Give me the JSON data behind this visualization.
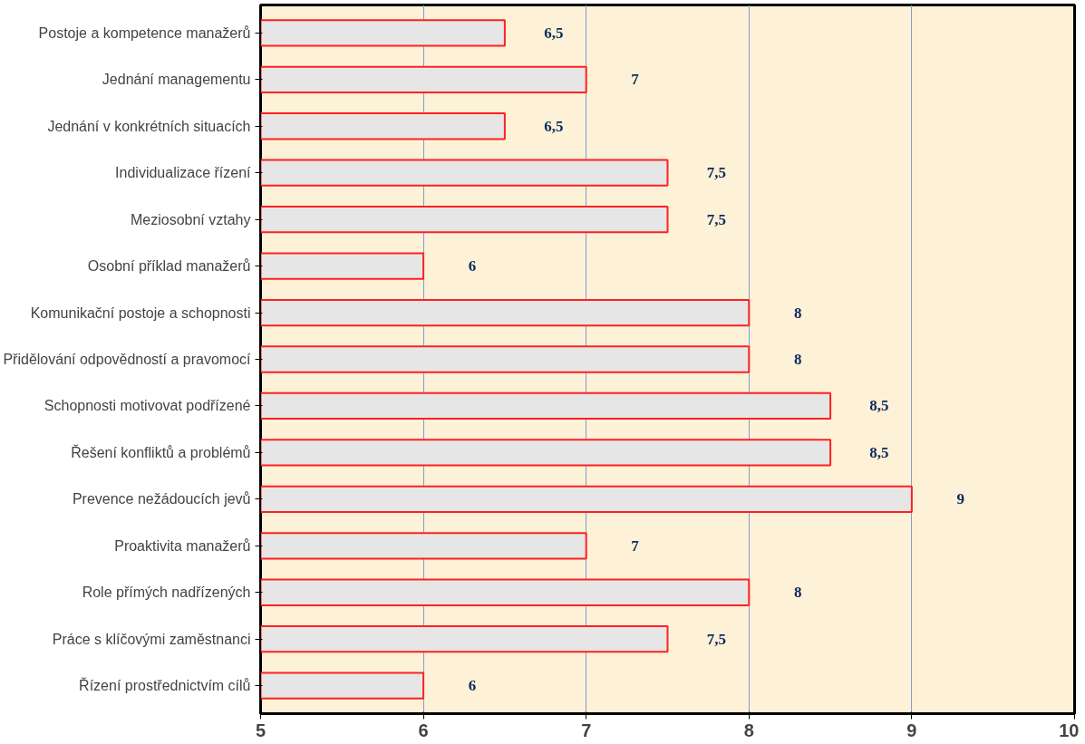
{
  "chart_data": {
    "type": "bar",
    "orientation": "horizontal",
    "categories": [
      "Postoje a kompetence manažerů",
      "Jednání managementu",
      "Jednání v konkrétních situacích",
      "Individualizace řízení",
      "Meziosobní vztahy",
      "Osobní příklad manažerů",
      "Komunikační postoje a schopnosti",
      "Přidělování odpovědností a pravomocí",
      "Schopnosti motivovat podřízené",
      "Řešení konfliktů a problémů",
      "Prevence nežádoucích jevů",
      "Proaktivita manažerů",
      "Role přímých nadřízených",
      "Práce s klíčovými zaměstnanci",
      "Řízení prostřednictvím cílů"
    ],
    "values": [
      6.5,
      7,
      6.5,
      7.5,
      7.5,
      6,
      8,
      8,
      8.5,
      8.5,
      9,
      7,
      8,
      7.5,
      6
    ],
    "value_labels": [
      "6,5",
      "7",
      "6,5",
      "7,5",
      "7,5",
      "6",
      "8",
      "8",
      "8,5",
      "8,5",
      "9",
      "7",
      "8",
      "7,5",
      "6"
    ],
    "color": "#e6e6e6",
    "xlim": [
      5,
      10
    ],
    "xticks": [
      5,
      6,
      7,
      8,
      9,
      10
    ],
    "grid": "x"
  }
}
